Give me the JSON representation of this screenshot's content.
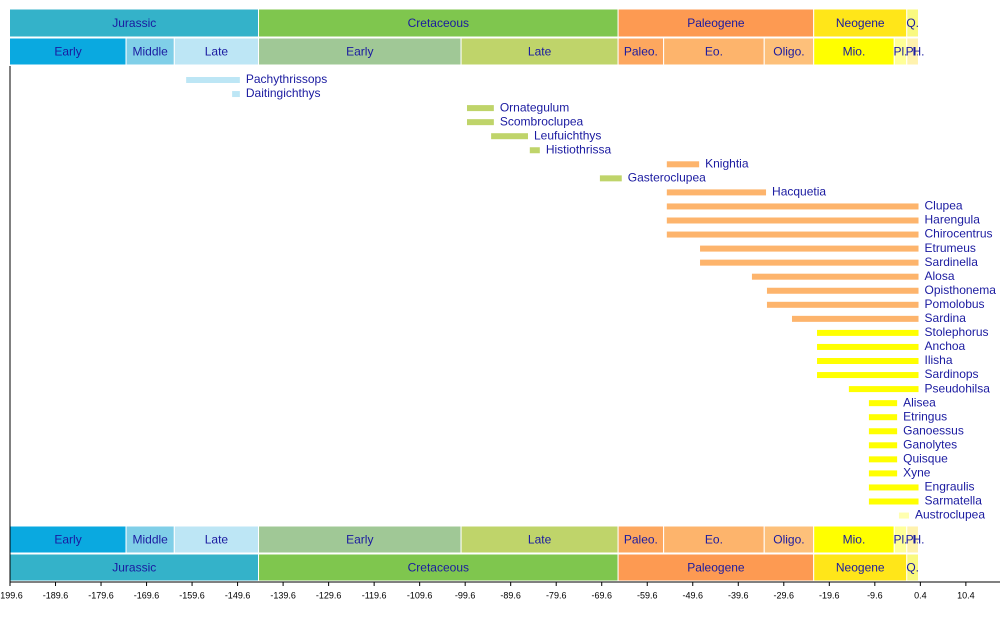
{
  "chart_data": {
    "type": "timeline",
    "xlim": [
      -199.6,
      17.9
    ],
    "xticks": [
      -199.6,
      -189.6,
      -179.6,
      -169.6,
      -159.6,
      -149.6,
      -139.6,
      -129.6,
      -119.6,
      -109.6,
      -99.6,
      -89.6,
      -79.6,
      -69.6,
      -59.6,
      -49.6,
      -39.6,
      -29.6,
      -19.6,
      -9.6,
      0.4,
      10.4
    ],
    "periods": [
      {
        "name": "Jurassic",
        "start": -201.3,
        "end": -145,
        "color": "#34b2c9"
      },
      {
        "name": "Cretaceous",
        "start": -145,
        "end": -66,
        "color": "#7fc64e"
      },
      {
        "name": "Paleogene",
        "start": -66,
        "end": -23.03,
        "color": "#fd9a52"
      },
      {
        "name": "Neogene",
        "start": -23.03,
        "end": -2.58,
        "color": "#ffe619"
      },
      {
        "name": "Q.",
        "start": -2.58,
        "end": 0,
        "color": "#f9f97f"
      }
    ],
    "epochs": [
      {
        "name": "Early",
        "start": -201.3,
        "end": -174.1,
        "color": "#0aa9e0"
      },
      {
        "name": "Middle",
        "start": -174.1,
        "end": -163.5,
        "color": "#80cfe8"
      },
      {
        "name": "Late",
        "start": -163.5,
        "end": -145,
        "color": "#bde6f5"
      },
      {
        "name": "Early",
        "start": -145,
        "end": -100.5,
        "color": "#a0c896"
      },
      {
        "name": "Late",
        "start": -100.5,
        "end": -66,
        "color": "#bfd46a"
      },
      {
        "name": "Paleo.",
        "start": -66,
        "end": -56,
        "color": "#fda75f"
      },
      {
        "name": "Eo.",
        "start": -56,
        "end": -33.9,
        "color": "#fdb46c"
      },
      {
        "name": "Oligo.",
        "start": -33.9,
        "end": -23.03,
        "color": "#fdc07a"
      },
      {
        "name": "Mio.",
        "start": -23.03,
        "end": -5.333,
        "color": "#ffff00"
      },
      {
        "name": "Pl.",
        "start": -5.333,
        "end": -2.58,
        "color": "#ffff99"
      },
      {
        "name": "Pl.",
        "start": -2.58,
        "end": -0.0117,
        "color": "#fff2ae"
      },
      {
        "name": "H.",
        "start": -0.0117,
        "end": 0,
        "color": "#fef2e0"
      }
    ],
    "taxa": [
      {
        "name": "Pachythrissops",
        "start": -160.9,
        "end": -149.1,
        "color": "#bde6f5"
      },
      {
        "name": "Daitingichthys",
        "start": -150.8,
        "end": -149.1,
        "color": "#bde6f5"
      },
      {
        "name": "Ornategulum",
        "start": -99.2,
        "end": -93.3,
        "color": "#bfd46a"
      },
      {
        "name": "Scombroclupea",
        "start": -99.2,
        "end": -93.3,
        "color": "#bfd46a"
      },
      {
        "name": "Leufuichthys",
        "start": -93.9,
        "end": -85.8,
        "color": "#bfd46a"
      },
      {
        "name": "Histiothrissa",
        "start": -85.4,
        "end": -83.2,
        "color": "#bfd46a"
      },
      {
        "name": "Knightia",
        "start": -55.3,
        "end": -48.2,
        "color": "#fdb46c"
      },
      {
        "name": "Gasteroclupea",
        "start": -70,
        "end": -65.2,
        "color": "#bfd46a"
      },
      {
        "name": "Hacquetia",
        "start": -55.3,
        "end": -33.5,
        "color": "#fdb46c"
      },
      {
        "name": "Clupea",
        "start": -55.3,
        "end": 0,
        "color": "#fdb46c"
      },
      {
        "name": "Harengula",
        "start": -55.3,
        "end": 0,
        "color": "#fdb46c"
      },
      {
        "name": "Chirocentrus",
        "start": -55.3,
        "end": 0,
        "color": "#fdb46c"
      },
      {
        "name": "Etrumeus",
        "start": -48,
        "end": 0,
        "color": "#fdb46c"
      },
      {
        "name": "Sardinella",
        "start": -48,
        "end": 0,
        "color": "#fdb46c"
      },
      {
        "name": "Alosa",
        "start": -36.6,
        "end": 0,
        "color": "#fdb46c"
      },
      {
        "name": "Opisthonema",
        "start": -33.3,
        "end": 0,
        "color": "#fdb46c"
      },
      {
        "name": "Pomolobus",
        "start": -33.3,
        "end": 0,
        "color": "#fdb46c"
      },
      {
        "name": "Sardina",
        "start": -27.8,
        "end": 0,
        "color": "#fdb46c"
      },
      {
        "name": "Stolephorus",
        "start": -22.3,
        "end": 0,
        "color": "#ffff00"
      },
      {
        "name": "Anchoa",
        "start": -22.3,
        "end": 0,
        "color": "#ffff00"
      },
      {
        "name": "Ilisha",
        "start": -22.3,
        "end": 0,
        "color": "#ffff00"
      },
      {
        "name": "Sardinops",
        "start": -22.3,
        "end": 0,
        "color": "#ffff00"
      },
      {
        "name": "Pseudohilsa",
        "start": -15.3,
        "end": 0,
        "color": "#ffff00"
      },
      {
        "name": "Alisea",
        "start": -10.9,
        "end": -4.7,
        "color": "#ffff00"
      },
      {
        "name": "Etringus",
        "start": -10.9,
        "end": -4.7,
        "color": "#ffff00"
      },
      {
        "name": "Ganoessus",
        "start": -10.9,
        "end": -4.7,
        "color": "#ffff00"
      },
      {
        "name": "Ganolytes",
        "start": -10.9,
        "end": -4.7,
        "color": "#ffff00"
      },
      {
        "name": "Quisque",
        "start": -10.9,
        "end": -4.7,
        "color": "#ffff00"
      },
      {
        "name": "Xyne",
        "start": -10.9,
        "end": -4.7,
        "color": "#ffff00"
      },
      {
        "name": "Engraulis",
        "start": -10.9,
        "end": 0,
        "color": "#ffff00"
      },
      {
        "name": "Sarmatella",
        "start": -10.9,
        "end": 0,
        "color": "#ffff00"
      },
      {
        "name": "Austroclupea",
        "start": -4.3,
        "end": -2.1,
        "color": "#ffffb0"
      }
    ]
  }
}
